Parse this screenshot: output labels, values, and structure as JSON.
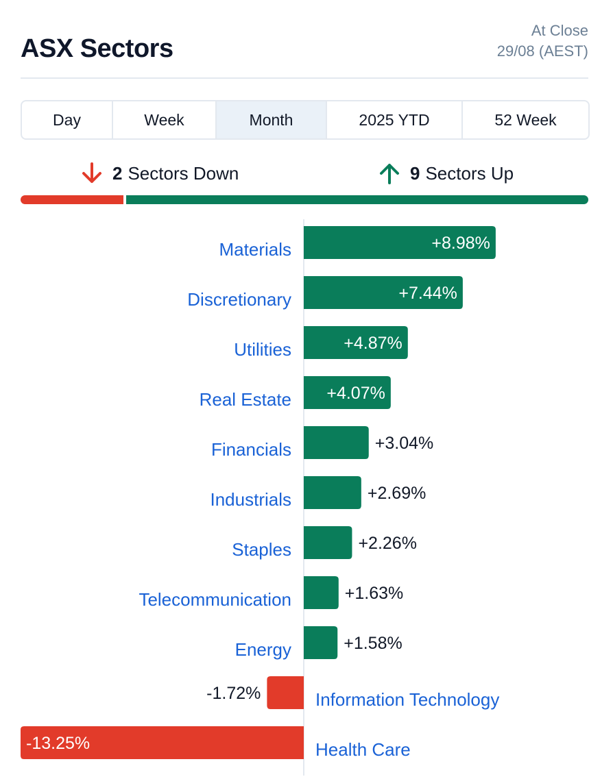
{
  "header": {
    "title": "ASX Sectors",
    "status": "At Close",
    "date": "29/08 (AEST)"
  },
  "tabs": [
    {
      "label": "Day",
      "active": false
    },
    {
      "label": "Week",
      "active": false
    },
    {
      "label": "Month",
      "active": true
    },
    {
      "label": "2025 YTD",
      "active": false
    },
    {
      "label": "52 Week",
      "active": false
    }
  ],
  "summary": {
    "down_count": "2",
    "down_label": "Sectors Down",
    "up_count": "9",
    "up_label": "Sectors Up"
  },
  "colors": {
    "positive": "#0a7d5a",
    "negative": "#e23b2a",
    "link": "#1a62d6"
  },
  "chart_data": {
    "type": "bar",
    "orientation": "horizontal",
    "categories": [
      "Materials",
      "Discretionary",
      "Utilities",
      "Real Estate",
      "Financials",
      "Industrials",
      "Staples",
      "Telecommunication",
      "Energy",
      "Information Technology",
      "Health Care"
    ],
    "values": [
      8.98,
      7.44,
      4.87,
      4.07,
      3.04,
      2.69,
      2.26,
      1.63,
      1.58,
      -1.72,
      -13.25
    ],
    "value_labels": [
      "+8.98%",
      "+7.44%",
      "+4.87%",
      "+4.07%",
      "+3.04%",
      "+2.69%",
      "+2.26%",
      "+1.63%",
      "+1.58%",
      "-1.72%",
      "-13.25%"
    ],
    "unit": "%",
    "xlim": [
      -13.25,
      13.25
    ]
  }
}
